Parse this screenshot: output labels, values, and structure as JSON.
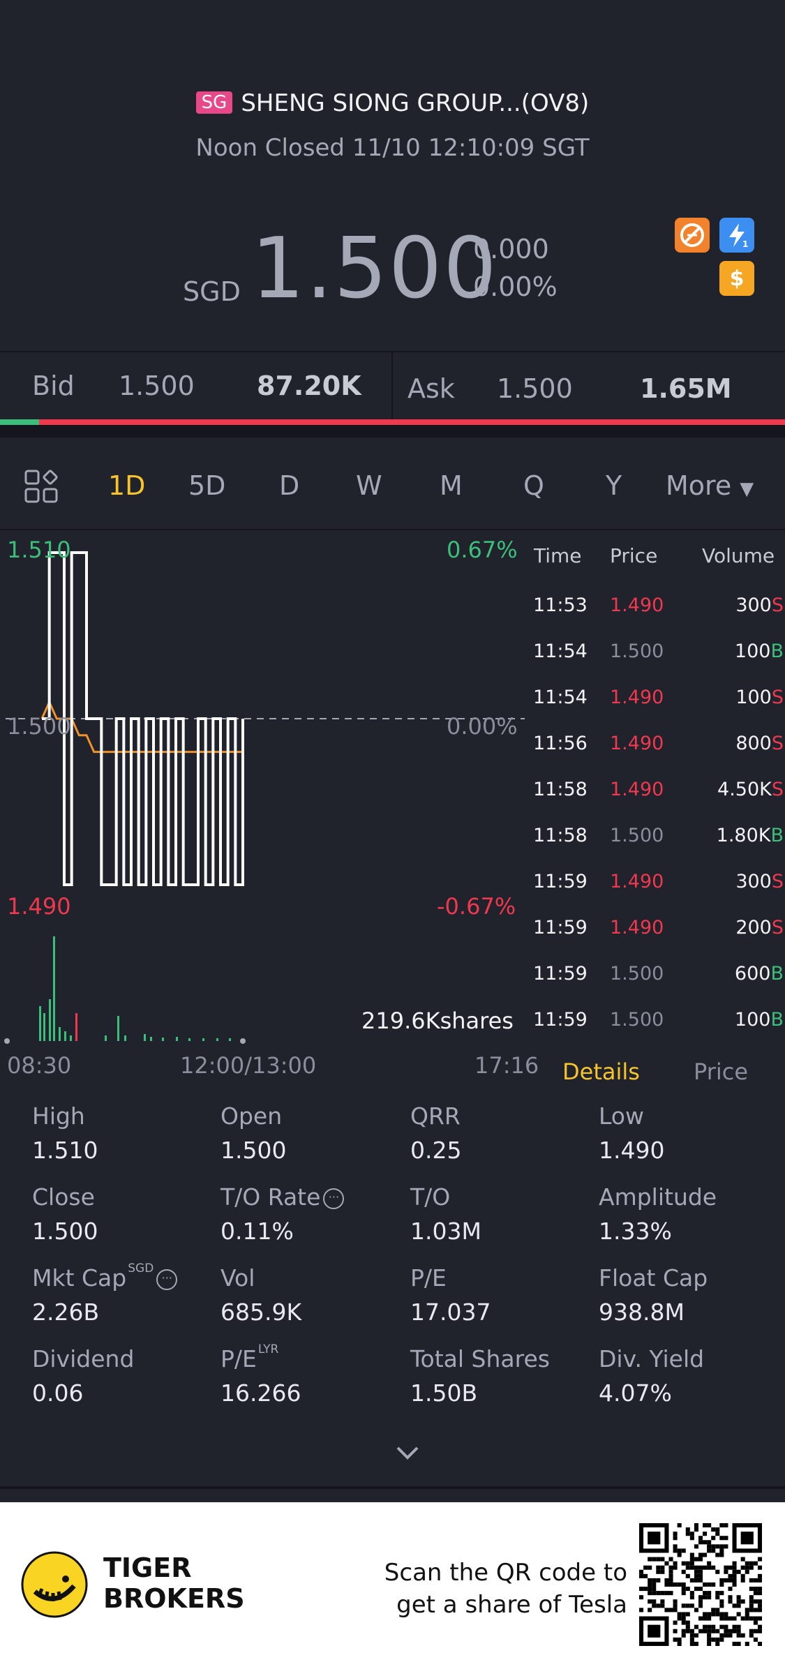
{
  "header": {
    "market_badge": "SG",
    "stock_name": "SHENG SIONG GROUP...(OV8)",
    "status": "Noon Closed 11/10 12:10:09 SGT"
  },
  "quote": {
    "currency": "SGD",
    "price": "1.500",
    "change": "0.000",
    "change_pct": "0.00%"
  },
  "icons": [
    "no-short-icon",
    "flash-icon",
    "dollar-icon"
  ],
  "bid_ask": {
    "bid_label": "Bid",
    "bid_price": "1.500",
    "bid_vol": "87.20K",
    "ask_label": "Ask",
    "ask_price": "1.500",
    "ask_vol": "1.65M",
    "bid_ratio": 0.05
  },
  "tabs": [
    "1D",
    "5D",
    "D",
    "W",
    "M",
    "Q",
    "Y",
    "More"
  ],
  "active_tab": "1D",
  "chart": {
    "y_high": "1.510",
    "y_high_pct": "0.67%",
    "y_mid": "1.500",
    "y_mid_pct": "0.00%",
    "y_low": "1.490",
    "y_low_pct": "-0.67%",
    "volume_label": "219.6Kshares",
    "x_start": "08:30",
    "x_mid": "12:00/13:00",
    "x_end": "17:16"
  },
  "chart_data": {
    "type": "line",
    "title": "",
    "xlabel": "",
    "ylabel": "",
    "ylim": [
      1.49,
      1.51
    ],
    "series": [
      {
        "values": [
          1.5,
          1.51,
          1.51,
          1.49,
          1.51,
          1.51,
          1.5,
          1.5,
          1.49,
          1.49,
          1.5,
          1.49,
          1.5,
          1.49,
          1.5,
          1.49,
          1.5,
          1.49,
          1.5,
          1.49,
          1.49,
          1.5,
          1.49,
          1.5,
          1.49,
          1.5,
          1.49,
          1.5
        ]
      },
      {
        "values": [
          1.5,
          1.501,
          1.5,
          1.5,
          1.5,
          1.499,
          1.499,
          1.498,
          1.498,
          1.498,
          1.498,
          1.498,
          1.498,
          1.498,
          1.498,
          1.498,
          1.498,
          1.498,
          1.498,
          1.498,
          1.498,
          1.498,
          1.498,
          1.498,
          1.498,
          1.498,
          1.498,
          1.498
        ]
      }
    ],
    "reference": 1.5
  },
  "trades": {
    "headers": [
      "Time",
      "Price",
      "Volume"
    ],
    "rows": [
      {
        "time": "11:53",
        "price": "1.490",
        "vol": "300",
        "side": "S"
      },
      {
        "time": "11:54",
        "price": "1.500",
        "vol": "100",
        "side": "B"
      },
      {
        "time": "11:54",
        "price": "1.490",
        "vol": "100",
        "side": "S"
      },
      {
        "time": "11:56",
        "price": "1.490",
        "vol": "800",
        "side": "S"
      },
      {
        "time": "11:58",
        "price": "1.490",
        "vol": "4.50K",
        "side": "S"
      },
      {
        "time": "11:58",
        "price": "1.500",
        "vol": "1.80K",
        "side": "B"
      },
      {
        "time": "11:59",
        "price": "1.490",
        "vol": "300",
        "side": "S"
      },
      {
        "time": "11:59",
        "price": "1.490",
        "vol": "200",
        "side": "S"
      },
      {
        "time": "11:59",
        "price": "1.500",
        "vol": "600",
        "side": "B"
      },
      {
        "time": "11:59",
        "price": "1.500",
        "vol": "100",
        "side": "B"
      }
    ],
    "tab_details": "Details",
    "tab_price": "Price"
  },
  "details": [
    {
      "label": "High",
      "value": "1.510"
    },
    {
      "label": "Open",
      "value": "1.500"
    },
    {
      "label": "QRR",
      "value": "0.25"
    },
    {
      "label": "Low",
      "value": "1.490"
    },
    {
      "label": "Close",
      "value": "1.500"
    },
    {
      "label": "T/O Rate",
      "value": "0.11%"
    },
    {
      "label": "T/O",
      "value": "1.03M"
    },
    {
      "label": "Amplitude",
      "value": "1.33%"
    },
    {
      "label": "Mkt Cap",
      "value": "2.26B",
      "sup": "SGD"
    },
    {
      "label": "Vol",
      "value": "685.9K"
    },
    {
      "label": "P/E",
      "value": "17.037"
    },
    {
      "label": "Float Cap",
      "value": "938.8M"
    },
    {
      "label": "Dividend",
      "value": "0.06"
    },
    {
      "label": "P/E",
      "value": "16.266",
      "sup": "LYR"
    },
    {
      "label": "Total Shares",
      "value": "1.50B"
    },
    {
      "label": "Div. Yield",
      "value": "4.07%"
    }
  ],
  "footer": {
    "brand_line1": "TIGER",
    "brand_line2": "BROKERS",
    "cta_line1": "Scan the QR code to",
    "cta_line2": "get a share of Tesla"
  },
  "colors": {
    "bg": "#20222c",
    "up": "#3bbf7a",
    "down": "#f0384e",
    "accent": "#f7c52b",
    "avg_line": "#f2922b"
  }
}
